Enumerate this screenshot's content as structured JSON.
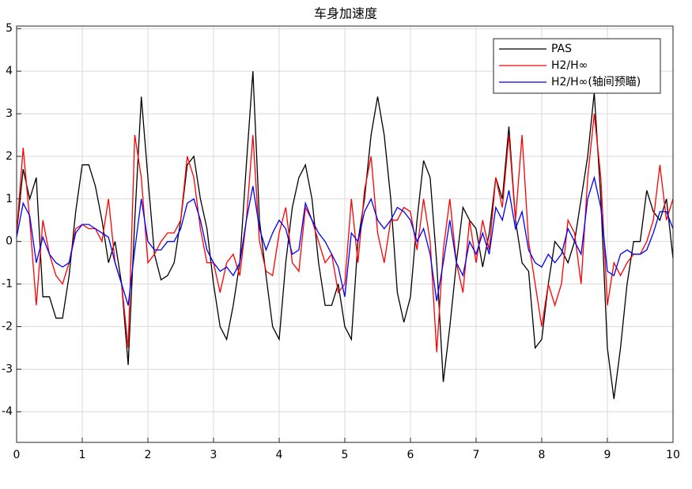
{
  "chart_data": {
    "type": "line",
    "title": "车身加速度",
    "x": [
      0,
      0.1,
      0.2,
      0.3,
      0.4,
      0.5,
      0.6,
      0.7,
      0.8,
      0.9,
      1,
      1.1,
      1.2,
      1.3,
      1.4,
      1.5,
      1.6,
      1.7,
      1.8,
      1.9,
      2,
      2.1,
      2.2,
      2.3,
      2.4,
      2.5,
      2.6,
      2.7,
      2.8,
      2.9,
      3,
      3.1,
      3.2,
      3.3,
      3.4,
      3.5,
      3.6,
      3.7,
      3.8,
      3.9,
      4,
      4.1,
      4.2,
      4.3,
      4.4,
      4.5,
      4.6,
      4.7,
      4.8,
      4.9,
      5,
      5.1,
      5.2,
      5.3,
      5.4,
      5.5,
      5.6,
      5.7,
      5.8,
      5.9,
      6,
      6.1,
      6.2,
      6.3,
      6.4,
      6.5,
      6.6,
      6.7,
      6.8,
      6.9,
      7,
      7.1,
      7.2,
      7.3,
      7.4,
      7.5,
      7.6,
      7.7,
      7.8,
      7.9,
      8,
      8.1,
      8.2,
      8.3,
      8.4,
      8.5,
      8.6,
      8.7,
      8.8,
      8.9,
      9,
      9.1,
      9.2,
      9.3,
      9.4,
      9.5,
      9.6,
      9.7,
      9.8,
      9.9,
      10
    ],
    "series": [
      {
        "name": "PAS",
        "color": "#000000",
        "values": [
          0.2,
          1.7,
          1.0,
          1.5,
          -1.3,
          -1.3,
          -1.8,
          -1.8,
          -0.8,
          0.7,
          1.8,
          1.8,
          1.3,
          0.5,
          -0.5,
          0,
          -1.0,
          -2.9,
          0.5,
          3.4,
          1.5,
          -0.3,
          -0.9,
          -0.8,
          -0.5,
          0.5,
          1.8,
          2.0,
          1.0,
          0.3,
          -1.0,
          -2.0,
          -2.3,
          -1.5,
          -0.5,
          1.8,
          4.0,
          0.5,
          -0.8,
          -2.0,
          -2.3,
          -0.5,
          0.8,
          1.5,
          1.8,
          1.0,
          -0.5,
          -1.5,
          -1.5,
          -1.0,
          -2.0,
          -2.3,
          0,
          1.0,
          2.5,
          3.4,
          2.5,
          1.0,
          -1.2,
          -1.9,
          -1.3,
          0.5,
          1.9,
          1.5,
          -0.5,
          -3.3,
          -2.0,
          -0.5,
          0.8,
          0.5,
          0.3,
          -0.6,
          0.2,
          1.5,
          1.0,
          2.7,
          0.5,
          -0.5,
          -0.7,
          -2.5,
          -2.3,
          -1.0,
          0,
          -0.2,
          -0.5,
          0,
          1.0,
          2.0,
          3.5,
          1.0,
          -2.5,
          -3.7,
          -2.5,
          -1.0,
          0,
          0,
          1.2,
          0.7,
          0.5,
          1.0,
          -0.4
        ]
      },
      {
        "name": "H2/H∞",
        "color": "#ff0000",
        "values": [
          0.2,
          2.2,
          0.5,
          -1.5,
          0.5,
          -0.3,
          -0.8,
          -1.0,
          -0.5,
          0.3,
          0.4,
          0.3,
          0.3,
          0,
          1.0,
          -0.5,
          -1.0,
          -2.5,
          2.5,
          1.5,
          -0.5,
          -0.3,
          0,
          0.2,
          0.2,
          0.5,
          2.0,
          1.5,
          0.3,
          -0.5,
          -0.5,
          -1.2,
          -0.5,
          -0.3,
          -0.8,
          0.5,
          2.5,
          0,
          -0.7,
          -0.8,
          0.2,
          0.8,
          -0.5,
          -0.7,
          0.8,
          0.5,
          0,
          -0.5,
          -0.3,
          -1.2,
          -1.0,
          1.0,
          -0.5,
          1.2,
          2.0,
          0.2,
          -0.5,
          0.5,
          0.5,
          0.8,
          0.7,
          -0.2,
          1.0,
          0,
          -2.6,
          -0.2,
          1.0,
          -0.5,
          -1.2,
          0.5,
          -0.5,
          0.5,
          -0.2,
          1.5,
          0.8,
          2.5,
          0.5,
          2.5,
          0,
          -1.0,
          -2.0,
          -1.0,
          -1.5,
          -1.0,
          0.5,
          0.2,
          -1.0,
          1.5,
          3.0,
          1.5,
          -1.5,
          -0.5,
          -0.8,
          -0.5,
          -0.3,
          -0.3,
          0,
          0.5,
          1.8,
          0.5,
          1.0
        ]
      },
      {
        "name": "H2/H∞(轴间预瞄)",
        "color": "#0000ff",
        "values": [
          0.1,
          0.9,
          0.6,
          -0.5,
          0.1,
          -0.3,
          -0.5,
          -0.6,
          -0.5,
          0.2,
          0.4,
          0.4,
          0.3,
          0.2,
          0.1,
          -0.5,
          -1.0,
          -1.5,
          -0.2,
          1.0,
          0,
          -0.2,
          -0.2,
          0,
          0,
          0.3,
          0.9,
          1.0,
          0.5,
          -0.2,
          -0.5,
          -0.7,
          -0.6,
          -0.8,
          -0.5,
          0.5,
          1.3,
          0.3,
          -0.2,
          0.2,
          0.5,
          0.3,
          -0.3,
          -0.2,
          0.9,
          0.5,
          0.2,
          0,
          -0.3,
          -0.6,
          -1.3,
          0.2,
          0,
          0.7,
          1.0,
          0.5,
          0.3,
          0.5,
          0.8,
          0.7,
          0.5,
          0,
          0.3,
          -0.3,
          -1.4,
          -0.5,
          0.5,
          -0.5,
          -0.8,
          0,
          -0.3,
          0.2,
          -0.3,
          0.8,
          0.5,
          1.2,
          0.3,
          0.7,
          -0.2,
          -0.5,
          -0.6,
          -0.3,
          -0.5,
          -0.3,
          0.3,
          0,
          -0.3,
          1.0,
          1.5,
          0.8,
          -0.7,
          -0.8,
          -0.3,
          -0.2,
          -0.3,
          -0.3,
          -0.2,
          0.2,
          0.7,
          0.7,
          0.3
        ]
      }
    ],
    "xlim": [
      0,
      10
    ],
    "xticks": [
      0,
      1,
      2,
      3,
      4,
      5,
      6,
      7,
      8,
      9,
      10
    ],
    "ylim": [
      -4.72,
      5.06
    ],
    "yticks": [
      -4,
      -3,
      -2,
      -1,
      0,
      1,
      2,
      3,
      4,
      5
    ],
    "grid": true,
    "legend": "top-right"
  }
}
